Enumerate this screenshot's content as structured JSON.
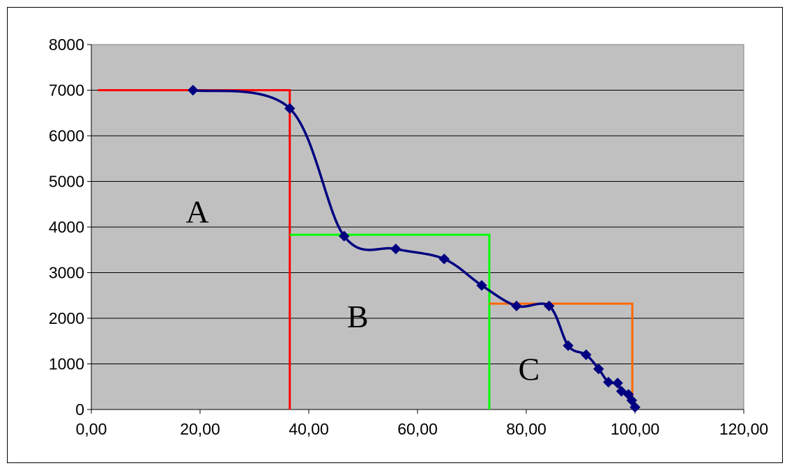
{
  "chart_data": {
    "type": "scatter",
    "xlim": [
      0,
      120
    ],
    "ylim": [
      0,
      8000
    ],
    "x_ticks": [
      "0,00",
      "20,00",
      "40,00",
      "60,00",
      "80,00",
      "100,00",
      "120,00"
    ],
    "y_ticks": [
      "0",
      "1000",
      "2000",
      "3000",
      "4000",
      "5000",
      "6000",
      "7000",
      "8000"
    ],
    "grid": "horizontal",
    "plot_background": "#c0c0c0",
    "series": [
      {
        "color": "#000080",
        "marker": "diamond",
        "smoothed": true,
        "points": [
          [
            18.7,
            7000
          ],
          [
            36.5,
            6600
          ],
          [
            46.5,
            3800
          ],
          [
            56.0,
            3520
          ],
          [
            64.9,
            3300
          ],
          [
            71.8,
            2720
          ],
          [
            78.2,
            2270
          ],
          [
            84.2,
            2270
          ],
          [
            87.7,
            1400
          ],
          [
            91.0,
            1200
          ],
          [
            93.3,
            890
          ],
          [
            95.1,
            600
          ],
          [
            96.8,
            580
          ],
          [
            97.5,
            400
          ],
          [
            98.8,
            330
          ],
          [
            99.4,
            200
          ],
          [
            100.0,
            50
          ]
        ]
      }
    ],
    "overlays": [
      {
        "label": "A",
        "color": "#ff0000",
        "points": [
          [
            1.2,
            7000
          ],
          [
            36.5,
            7000
          ],
          [
            36.5,
            0
          ]
        ]
      },
      {
        "label": "B",
        "color": "#00ff00",
        "points": [
          [
            36.5,
            3830
          ],
          [
            73.2,
            3830
          ],
          [
            73.2,
            0
          ]
        ]
      },
      {
        "label": "C",
        "color": "#ff6600",
        "points": [
          [
            73.2,
            2320
          ],
          [
            99.5,
            2320
          ],
          [
            99.5,
            0
          ]
        ]
      }
    ],
    "annotations": [
      {
        "text": "A",
        "x": 19.5,
        "y": 4100
      },
      {
        "text": "B",
        "x": 49.0,
        "y": 1800
      },
      {
        "text": "C",
        "x": 80.5,
        "y": 650
      }
    ]
  }
}
